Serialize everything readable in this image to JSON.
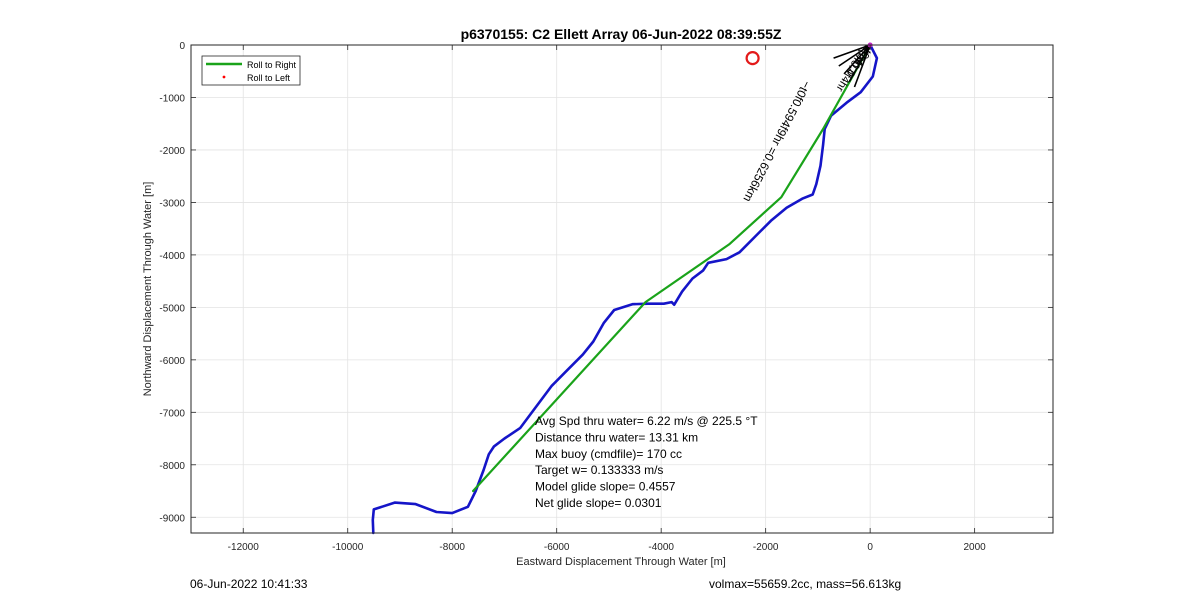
{
  "chart_data": {
    "type": "line",
    "title": "p6370155: C2 Ellett Array 06-Jun-2022 08:39:55Z",
    "xlabel": "Eastward Displacement Through Water [m]",
    "ylabel": "Northward Displacement Through Water [m]",
    "xlim": [
      -13000,
      3500
    ],
    "ylim": [
      -9300,
      0
    ],
    "xticks": [
      -12000,
      -10000,
      -8000,
      -6000,
      -4000,
      -2000,
      0,
      2000
    ],
    "yticks": [
      0,
      -1000,
      -2000,
      -3000,
      -4000,
      -5000,
      -6000,
      -7000,
      -8000,
      -9000
    ],
    "grid": true,
    "legend_position": "top-left",
    "legend": [
      {
        "label": "Roll to Right",
        "color": "#1aa31a",
        "style": "line"
      },
      {
        "label": "Roll to Left",
        "color": "#ff0000",
        "style": "dot"
      }
    ],
    "series": [
      {
        "name": "Roll to Right",
        "color": "#1aa31a",
        "x": [
          0,
          -900,
          -1700,
          -2700,
          -4300,
          -7600
        ],
        "y": [
          0,
          -1600,
          -2900,
          -3800,
          -4900,
          -8500
        ]
      },
      {
        "color": "#1515c8",
        "x": [
          0,
          130,
          50,
          -180,
          -450,
          -750,
          -870,
          -900,
          -950,
          -1030,
          -1100,
          -1300,
          -1600,
          -1900,
          -2200,
          -2500,
          -2750,
          -3100,
          -3200,
          -3400,
          -3600,
          -3750,
          -3800,
          -3950,
          -4250,
          -4550,
          -4900,
          -5100,
          -5300,
          -5500,
          -5800,
          -6100,
          -6400,
          -6700,
          -7000,
          -7200,
          -7300,
          -7400,
          -7550,
          -7700,
          -8000,
          -8300,
          -8700,
          -9100,
          -9500,
          -9520,
          -9510
        ],
        "y": [
          0,
          -250,
          -600,
          -900,
          -1100,
          -1350,
          -1600,
          -1900,
          -2300,
          -2650,
          -2850,
          -2930,
          -3100,
          -3350,
          -3650,
          -3950,
          -4080,
          -4150,
          -4300,
          -4450,
          -4700,
          -4950,
          -4900,
          -4930,
          -4930,
          -4940,
          -5050,
          -5300,
          -5650,
          -5900,
          -6200,
          -6500,
          -6900,
          -7300,
          -7500,
          -7650,
          -7800,
          -8100,
          -8500,
          -8800,
          -8920,
          -8900,
          -8750,
          -8720,
          -8850,
          -9050,
          -9300
        ]
      }
    ],
    "markers": [
      {
        "type": "circle",
        "x": -2250,
        "y": -250,
        "color": "#e31a1a"
      },
      {
        "type": "dot",
        "x": 0,
        "y": 0,
        "color": "#c01fc0"
      }
    ],
    "curve_labels": [
      "−t0f0.594f9hr =0.6256km",
      "−t0f0.4f4hr",
      "−3f0.0",
      "−t0.4"
    ],
    "annotations": [
      "Avg Spd thru water=  6.22 m/s @ 225.5 °T",
      "Distance thru water= 13.31 km",
      "Max buoy (cmdfile)= 170 cc",
      "Target w= 0.133333 m/s",
      "Model glide slope= 0.4557",
      "Net glide slope= 0.0301"
    ]
  },
  "footer": {
    "timestamp": "06-Jun-2022 10:41:33",
    "stats": "volmax=55659.2cc, mass=56.613kg"
  }
}
